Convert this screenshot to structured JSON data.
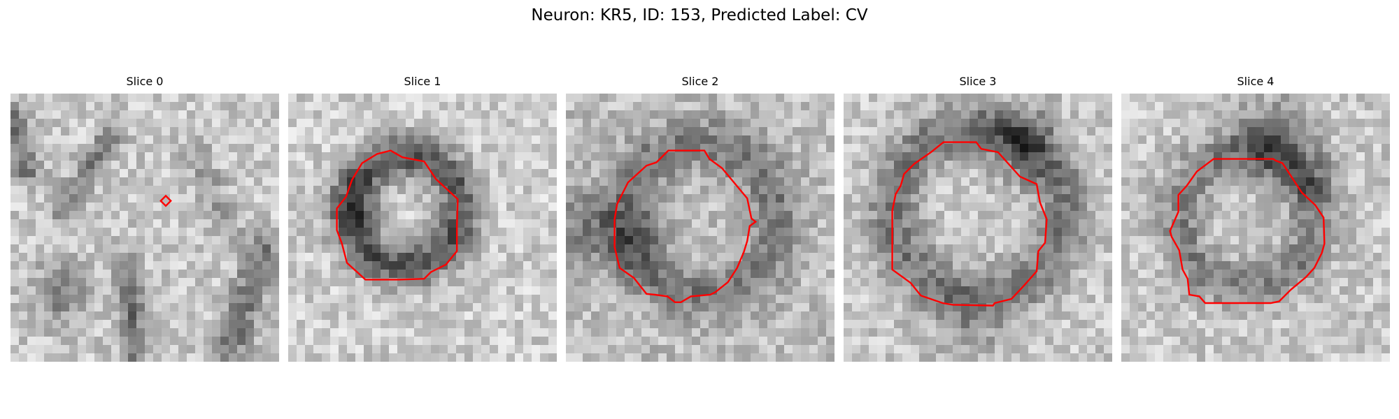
{
  "figure": {
    "title": "Neuron: KR5, ID: 153, Predicted Label: CV"
  },
  "contour_color": "#ff0000",
  "slices": [
    {
      "title": "Slice 0"
    },
    {
      "title": "Slice 1"
    },
    {
      "title": "Slice 2"
    },
    {
      "title": "Slice 3"
    },
    {
      "title": "Slice 4"
    }
  ]
}
